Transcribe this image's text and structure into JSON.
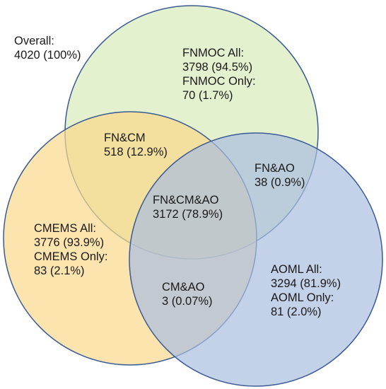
{
  "overall": {
    "label": "Overall:",
    "value": "4020 (100%)"
  },
  "sets": {
    "fnmoc": {
      "all_label": "FNMOC All:",
      "all_value": "3798 (94.5%)",
      "only_label": "FNMOC Only:",
      "only_value": "70 (1.7%)",
      "fill": "#d9ecbd",
      "stroke": "#3a5a95"
    },
    "cmems": {
      "all_label": "CMEMS All:",
      "all_value": "3776 (93.9%)",
      "only_label": "CMEMS Only:",
      "only_value": "83 (2.1%)",
      "fill": "#fad98a",
      "stroke": "#3a5a95"
    },
    "aoml": {
      "all_label": "AOML All:",
      "all_value": "3294 (81.9%)",
      "only_label": "AOML Only:",
      "only_value": "81 (2.0%)",
      "fill": "#a9bde0",
      "stroke": "#3a5a95"
    }
  },
  "intersections": {
    "fn_cm": {
      "label": "FN&CM",
      "value": "518 (12.9%)"
    },
    "fn_ao": {
      "label": "FN&AO",
      "value": "38 (0.9%)"
    },
    "cm_ao": {
      "label": "CM&AO",
      "value": "3 (0.07%)"
    },
    "fn_cm_ao": {
      "label": "FN&CM&AO",
      "value": "3172 (78.9%)"
    }
  }
}
